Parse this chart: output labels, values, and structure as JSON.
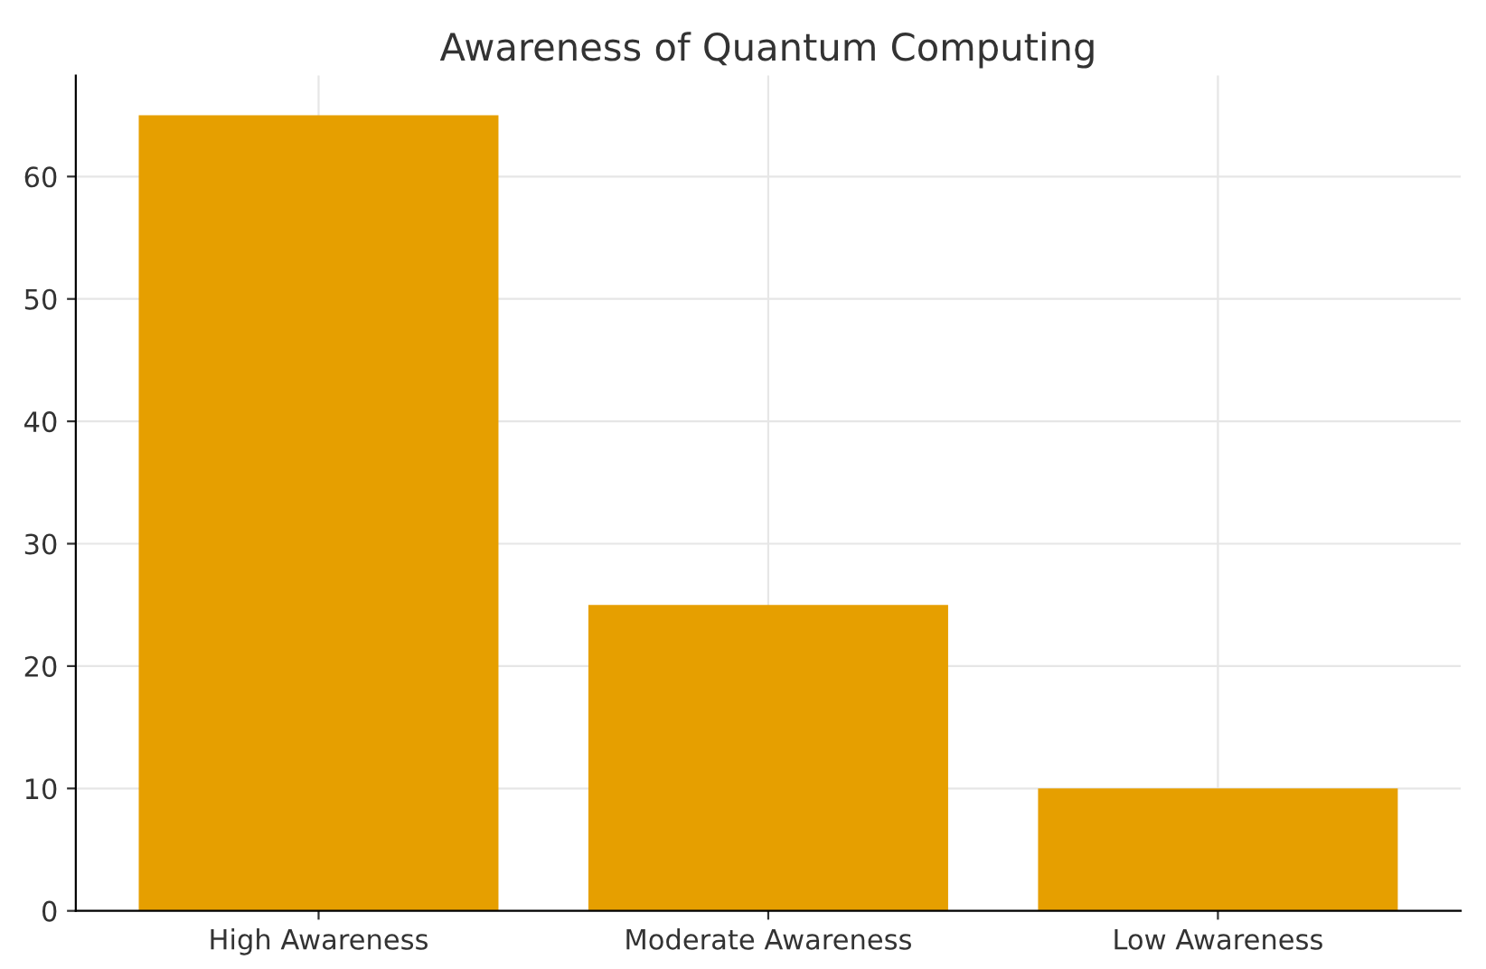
{
  "chart_data": {
    "type": "bar",
    "title": "Awareness of Quantum Computing",
    "categories": [
      "High Awareness",
      "Moderate Awareness",
      "Low Awareness"
    ],
    "values": [
      65,
      25,
      10
    ],
    "color": "#e69f00",
    "ylim": [
      0,
      68.25
    ],
    "yticks": [
      0,
      10,
      20,
      30,
      40,
      50,
      60
    ],
    "grid": true
  }
}
